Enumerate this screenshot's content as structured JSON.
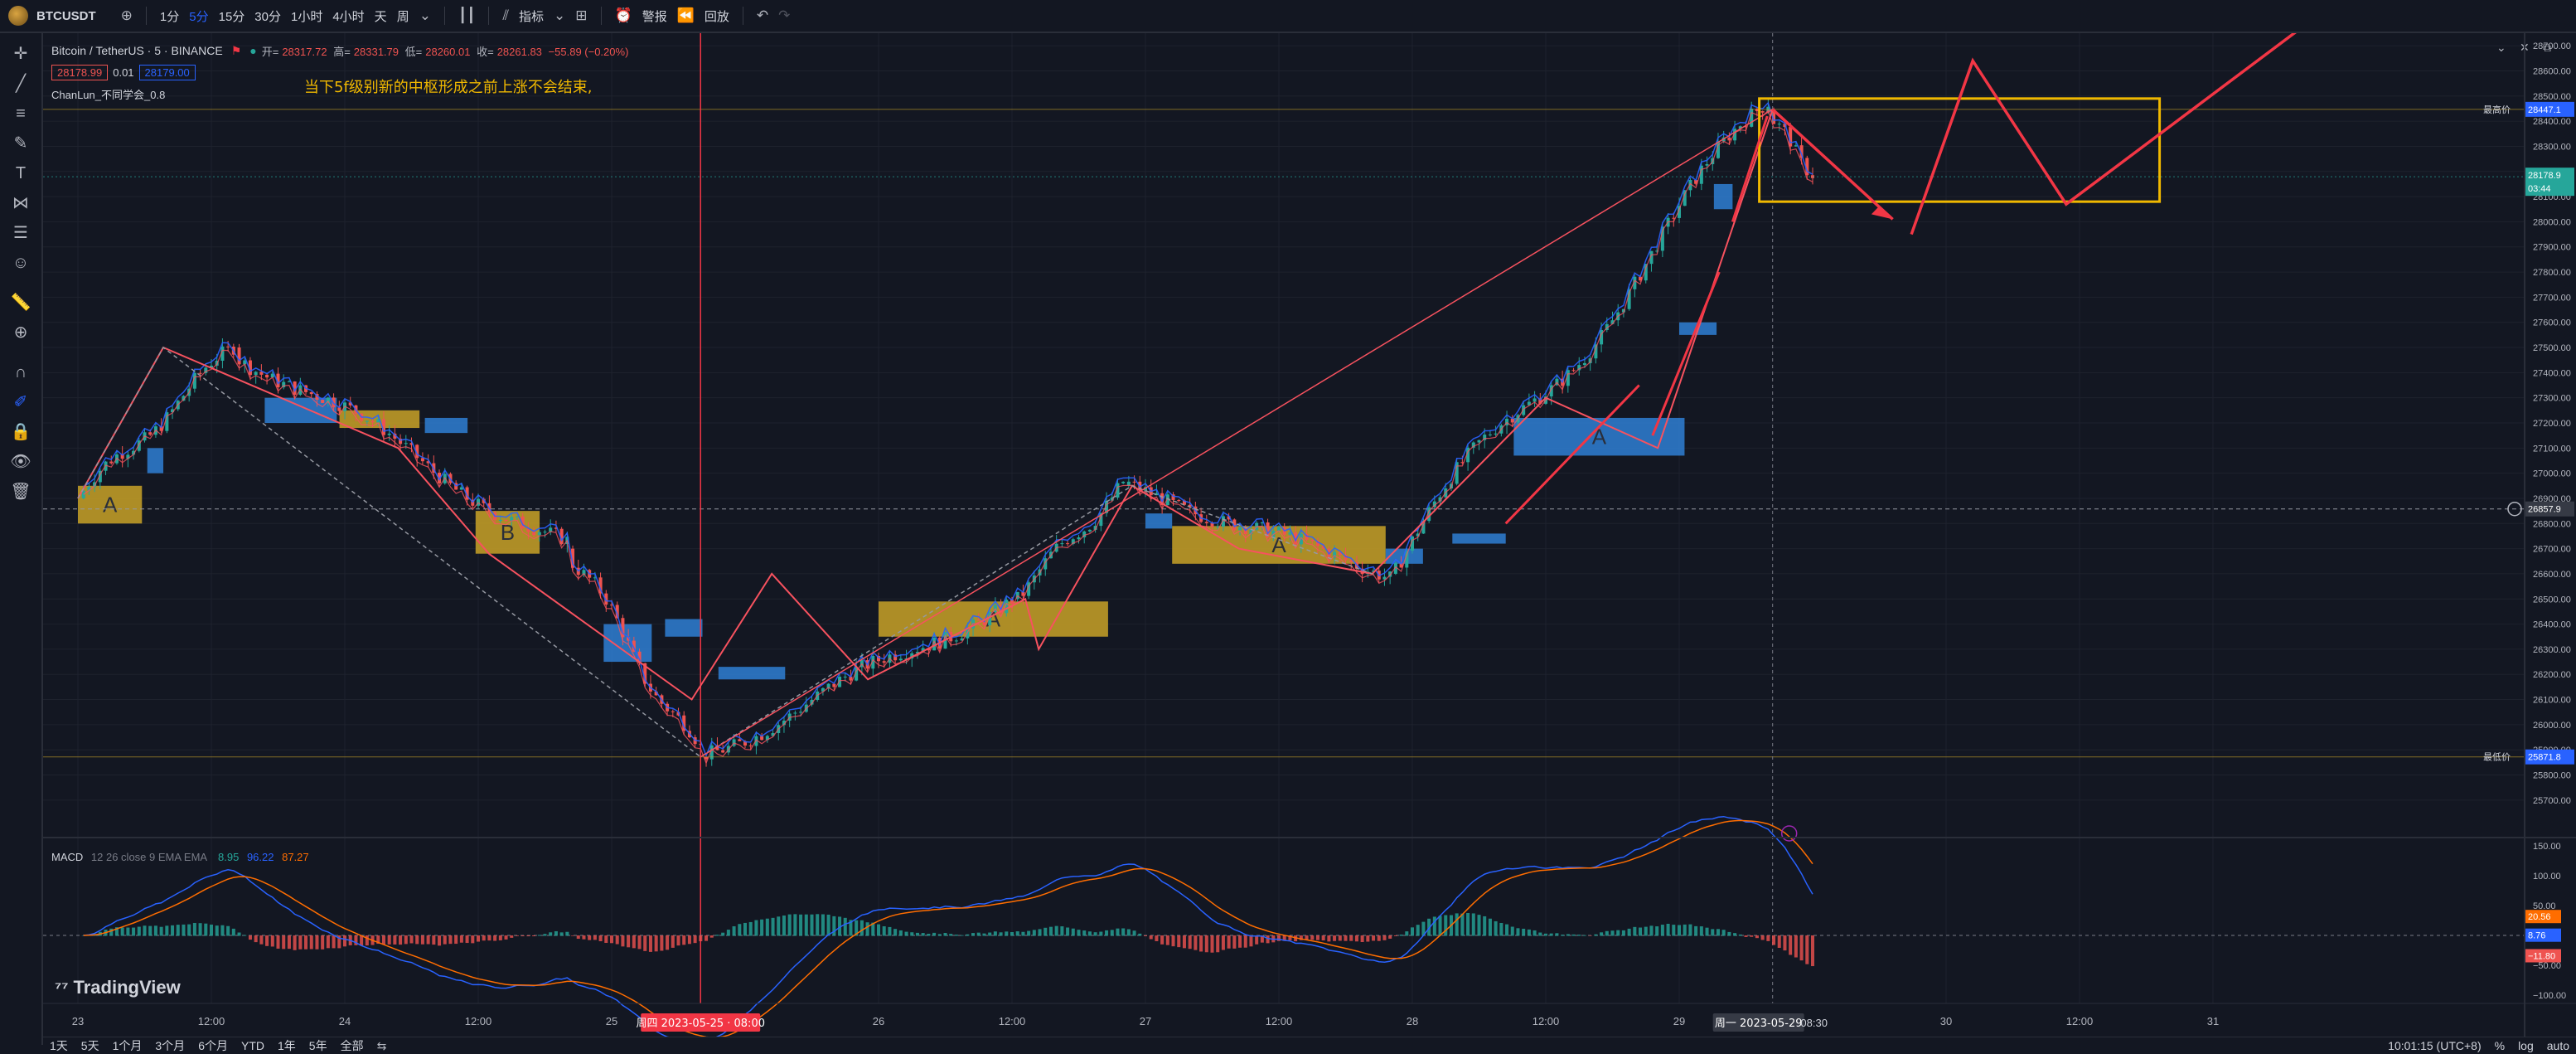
{
  "header": {
    "symbol": "BTCUSDT",
    "intervals": [
      "1分",
      "5分",
      "15分",
      "30分",
      "1小时",
      "4小时",
      "天",
      "周"
    ],
    "active_interval": "5分",
    "indicators_label": "指标",
    "alert_label": "警报",
    "replay_label": "回放"
  },
  "legend": {
    "title": "Bitcoin / TetherUS · 5 · BINANCE",
    "open_label": "开=",
    "open": "28317.72",
    "high_label": "高=",
    "high": "28331.79",
    "low_label": "低=",
    "low": "28260.01",
    "close_label": "收=",
    "close": "28261.83",
    "change": "−55.89 (−0.20%)",
    "sell_price": "28178.99",
    "spread": "0.01",
    "buy_price": "28179.00",
    "indicator": "ChanLun_不同学会_0.8"
  },
  "annotation_text": "当下5f级别新的中枢形成之前上涨不会结束,",
  "zone_labels": {
    "a1": "A",
    "b": "B",
    "a3": "A",
    "a4": "A",
    "a5": "A"
  },
  "chart_data": {
    "type": "candlestick",
    "y_axis": {
      "min": 25650,
      "max": 28750,
      "ticks": [
        28700,
        28600,
        28500,
        28400,
        28300,
        28200,
        28100,
        28000,
        27900,
        27800,
        27700,
        27600,
        27500,
        27400,
        27300,
        27200,
        27100,
        27000,
        26900,
        26800,
        26700,
        26600,
        26500,
        26400,
        26300,
        26200,
        26100,
        26000,
        25900,
        25800,
        25700
      ]
    },
    "price_tags": {
      "high_label": "最高价",
      "high_value": "28447.1",
      "current_value": "28178.9",
      "countdown": "03:44",
      "crosshair_value": "26857.9",
      "low_label": "最低价",
      "low_value": "25871.8"
    },
    "x_ticks": [
      "23",
      "12:00",
      "24",
      "12:00",
      "25",
      "26",
      "12:00",
      "27",
      "12:00",
      "28",
      "12:00",
      "29",
      "30",
      "12:00",
      "31"
    ],
    "cursor_time": "周四 2023-05-25 · 08:00",
    "current_time": "周一 2023-05-29",
    "current_time_right": "08:30",
    "key_points": [
      {
        "t": "23 00:00",
        "p": 26900
      },
      {
        "t": "23 14:00",
        "p": 27500
      },
      {
        "t": "24 20:00",
        "p": 26700
      },
      {
        "t": "25 08:00",
        "p": 25871.8
      },
      {
        "t": "26 12:00",
        "p": 26500
      },
      {
        "t": "26 22:00",
        "p": 26950
      },
      {
        "t": "27 22:00",
        "p": 26600
      },
      {
        "t": "29 08:00",
        "p": 28447.1
      },
      {
        "t": "29 12:00",
        "p": 28179
      }
    ]
  },
  "macd": {
    "label": "MACD",
    "params": "12 26 close 9 EMA EMA",
    "hist": "8.95",
    "macd": "96.22",
    "signal": "87.27",
    "ticks": [
      "150.00",
      "100.00",
      "50.00",
      "0.00",
      "−50.00",
      "−100.00"
    ],
    "tags": {
      "a": "20.56",
      "b": "8.76",
      "c": "−11.80"
    }
  },
  "bottom": {
    "ranges": [
      "1天",
      "5天",
      "1个月",
      "3个月",
      "6个月",
      "YTD",
      "1年",
      "5年",
      "全部"
    ],
    "clock": "10:01:15 (UTC+8)",
    "percent": "%",
    "log": "log",
    "auto": "auto"
  },
  "brand": "TradingView",
  "colors": {
    "up": "#26a69a",
    "down": "#ef5350",
    "zone_yellow": "#c9a227",
    "zone_blue": "#2f7fd4",
    "arrow": "#f23645",
    "box": "#f0b800"
  }
}
